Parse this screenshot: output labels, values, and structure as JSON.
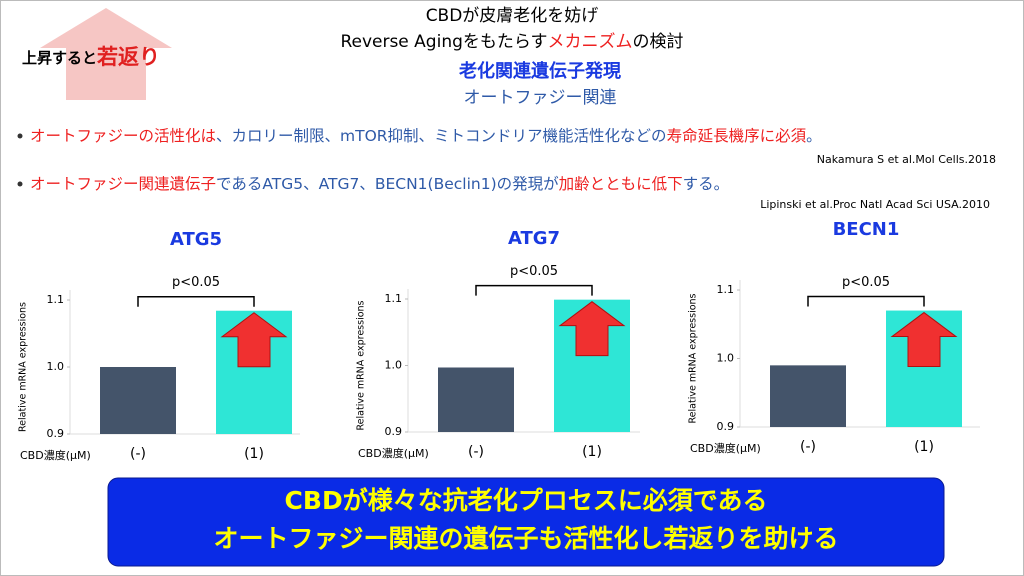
{
  "badge": {
    "text": "上昇すると",
    "emphasis": "若返り"
  },
  "header": {
    "line1": "CBDが皮膚老化を妨げ",
    "line2": [
      "Reverse Agingをもたらす",
      "メカニズム",
      "の検討"
    ],
    "heading": "老化関連遺伝子発現",
    "subheading": "オートファジー関連"
  },
  "bullets": [
    {
      "parts": [
        "オートファジーの活性化は",
        "、カロリー制限、mTOR抑制、ミトコンドリア機能活性化などの",
        "寿命延長機序に必須",
        "。"
      ],
      "citation": "Nakamura S et al.Mol Cells.2018"
    },
    {
      "parts": [
        "オートファジー関連遺伝子",
        "であるATG5、ATG7、BECN1(Beclin1)の発現が",
        "加齢とともに低下",
        "する。"
      ],
      "citation": "Lipinski et al.Proc Natl Acad Sci USA.2010"
    }
  ],
  "chart_data": [
    {
      "type": "bar",
      "title": "ATG5",
      "y_label": "Relative mRNA expressions",
      "x_label": "CBD濃度(μM)",
      "categories": [
        "(-)",
        "(1)"
      ],
      "values": [
        1.0,
        1.084
      ],
      "colors": [
        "#44546a",
        "#2ee6d6"
      ],
      "ylim": [
        0.9,
        1.1
      ],
      "yticks": [
        0.9,
        {
          "value": 1,
          "label": "1.0"
        },
        1.1
      ],
      "annotation": "p<0.05"
    },
    {
      "type": "bar",
      "title": "ATG7",
      "y_label": "Relative mRNA expressions",
      "x_label": "CBD濃度(μM)",
      "categories": [
        "(-)",
        "(1)"
      ],
      "values": [
        0.997,
        1.099
      ],
      "colors": [
        "#44546a",
        "#2ee6d6"
      ],
      "ylim": [
        0.9,
        1.1
      ],
      "yticks": [
        0.9,
        {
          "value": 1,
          "label": "1.0"
        },
        1.1
      ],
      "annotation": "p<0.05"
    },
    {
      "type": "bar",
      "title": "BECN1",
      "y_label": "Relative mRNA expressions",
      "x_label": "CBD濃度(μM)",
      "categories": [
        "(-)",
        "(1)"
      ],
      "values": [
        0.99,
        1.07
      ],
      "colors": [
        "#44546a",
        "#2ee6d6"
      ],
      "ylim": [
        0.9,
        1.1
      ],
      "yticks": [
        0.9,
        {
          "value": 1,
          "label": "1.0"
        },
        1.1
      ],
      "annotation": "p<0.05"
    }
  ],
  "conclusion": [
    "CBDが様々な抗老化プロセスに必須である",
    "オートファジー関連の遺伝子も活性化し若返りを助ける"
  ]
}
